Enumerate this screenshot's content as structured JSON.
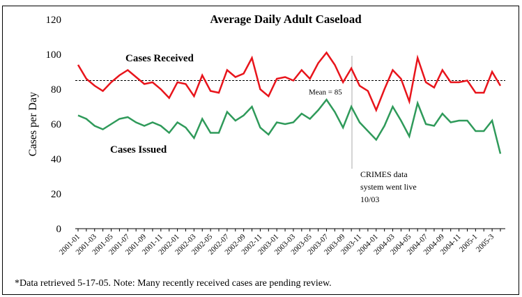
{
  "chart_data": {
    "type": "line",
    "title": "Average Daily Adult Caseload",
    "y_label": "Cases per Day",
    "categories": [
      "2001-01",
      null,
      "2001-03",
      null,
      "2001-05",
      null,
      "2001-07",
      null,
      "2001-09",
      null,
      "2001-11",
      null,
      "2002-01",
      null,
      "2002-03",
      null,
      "2002-05",
      null,
      "2002-07",
      null,
      "2002-09",
      null,
      "2002-11",
      null,
      "2003-01",
      null,
      "2003-03",
      null,
      "2003-05",
      null,
      "2003-07",
      null,
      "2003-09",
      null,
      "2003-11",
      null,
      "2004-01",
      null,
      "2004-03",
      null,
      "2004-05",
      null,
      "2004-07",
      null,
      "2004-09",
      null,
      "2004-11",
      null,
      "2005-1",
      null,
      "2005-3",
      null
    ],
    "series": [
      {
        "name": "Cases Received",
        "color": "#e8141b",
        "values": [
          94,
          86,
          82,
          79,
          84,
          88,
          91,
          87,
          83,
          84,
          80,
          75,
          84,
          83,
          76,
          88,
          79,
          78,
          91,
          87,
          89,
          98,
          80,
          76,
          86,
          87,
          85,
          91,
          86,
          95,
          101,
          94,
          84,
          92,
          82,
          79,
          68,
          80,
          91,
          86,
          73,
          98,
          84,
          81,
          91,
          84,
          84,
          85,
          78,
          78,
          90,
          82
        ]
      },
      {
        "name": "Cases Issued",
        "color": "#2f9a5a",
        "values": [
          65,
          63,
          59,
          57,
          60,
          63,
          64,
          61,
          59,
          61,
          59,
          55,
          61,
          58,
          52,
          63,
          55,
          55,
          67,
          62,
          65,
          70,
          58,
          54,
          61,
          60,
          61,
          66,
          63,
          68,
          74,
          67,
          58,
          70,
          61,
          56,
          51,
          59,
          70,
          62,
          53,
          72,
          60,
          59,
          66,
          61,
          62,
          62,
          56,
          56,
          62,
          43
        ]
      }
    ],
    "mean": 85,
    "mean_label": "Mean = 85",
    "annotation": [
      "CRIMES data",
      "system went live",
      "10/03"
    ],
    "footnote": "*Data retrieved 5-17-05.  Note:  Many recently received cases are pending review.",
    "ylim": [
      0,
      120
    ],
    "yticks": [
      0,
      20,
      40,
      60,
      80,
      100,
      120
    ],
    "grid": false
  }
}
